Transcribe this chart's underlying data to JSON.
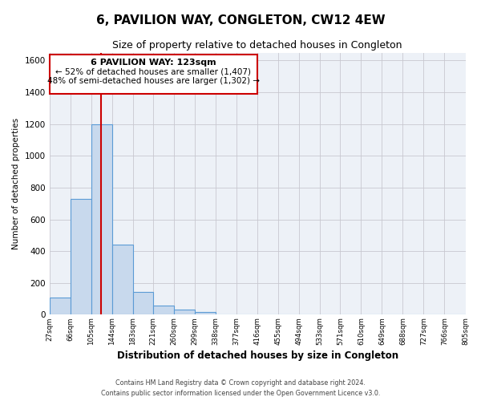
{
  "title": "6, PAVILION WAY, CONGLETON, CW12 4EW",
  "subtitle": "Size of property relative to detached houses in Congleton",
  "xlabel": "Distribution of detached houses by size in Congleton",
  "ylabel": "Number of detached properties",
  "footer_lines": [
    "Contains HM Land Registry data © Crown copyright and database right 2024.",
    "Contains public sector information licensed under the Open Government Licence v3.0."
  ],
  "bin_edges": [
    27,
    66,
    105,
    144,
    183,
    221,
    260,
    299,
    338,
    377,
    416,
    455,
    494,
    533,
    571,
    610,
    649,
    688,
    727,
    766,
    805
  ],
  "bin_counts": [
    110,
    730,
    1200,
    440,
    145,
    60,
    32,
    15,
    0,
    0,
    0,
    0,
    0,
    0,
    0,
    0,
    0,
    0,
    0,
    0
  ],
  "bar_color": "#c8d9ed",
  "bar_edge_color": "#5b9bd5",
  "grid_color": "#c8c8d0",
  "bg_color": "#edf1f7",
  "property_line_x": 123,
  "property_line_color": "#cc0000",
  "annotation_box_color": "#cc0000",
  "annotation_text_line1": "6 PAVILION WAY: 123sqm",
  "annotation_text_line2": "← 52% of detached houses are smaller (1,407)",
  "annotation_text_line3": "48% of semi-detached houses are larger (1,302) →",
  "ylim": [
    0,
    1650
  ],
  "yticks": [
    0,
    200,
    400,
    600,
    800,
    1000,
    1200,
    1400,
    1600
  ],
  "xtick_labels": [
    "27sqm",
    "66sqm",
    "105sqm",
    "144sqm",
    "183sqm",
    "221sqm",
    "260sqm",
    "299sqm",
    "338sqm",
    "377sqm",
    "416sqm",
    "455sqm",
    "494sqm",
    "533sqm",
    "571sqm",
    "610sqm",
    "649sqm",
    "688sqm",
    "727sqm",
    "766sqm",
    "805sqm"
  ]
}
